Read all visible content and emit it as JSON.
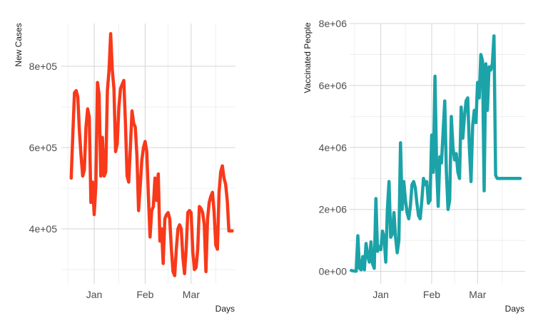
{
  "chart_data": [
    {
      "type": "line",
      "xlabel": "Days",
      "ylabel": "New Cases",
      "xlim": [
        "2020-12-12",
        "2021-03-28"
      ],
      "ylim": [
        265000,
        905000
      ],
      "x_ticks": [
        {
          "date": "2021-01-01",
          "label": "Jan"
        },
        {
          "date": "2021-02-01",
          "label": "Feb"
        },
        {
          "date": "2021-03-01",
          "label": "Mar"
        }
      ],
      "x_minor_ticks": [
        "2020-12-16",
        "2021-01-16",
        "2021-02-15",
        "2021-03-16"
      ],
      "y_ticks": [
        {
          "value": 400000,
          "label": "4e+05"
        },
        {
          "value": 600000,
          "label": "6e+05"
        },
        {
          "value": 800000,
          "label": "8e+05"
        }
      ],
      "y_minor_ticks": [
        300000,
        500000,
        700000
      ],
      "grid": true,
      "series": [
        {
          "color": "#F8391A",
          "x": [
            "2020-12-18",
            "2020-12-19",
            "2020-12-20",
            "2020-12-21",
            "2020-12-22",
            "2020-12-23",
            "2020-12-24",
            "2020-12-25",
            "2020-12-26",
            "2020-12-27",
            "2020-12-28",
            "2020-12-29",
            "2020-12-30",
            "2020-12-31",
            "2021-01-01",
            "2021-01-02",
            "2021-01-03",
            "2021-01-04",
            "2021-01-05",
            "2021-01-06",
            "2021-01-07",
            "2021-01-08",
            "2021-01-09",
            "2021-01-10",
            "2021-01-11",
            "2021-01-12",
            "2021-01-13",
            "2021-01-14",
            "2021-01-15",
            "2021-01-16",
            "2021-01-17",
            "2021-01-18",
            "2021-01-19",
            "2021-01-20",
            "2021-01-21",
            "2021-01-22",
            "2021-01-23",
            "2021-01-24",
            "2021-01-25",
            "2021-01-26",
            "2021-01-27",
            "2021-01-28",
            "2021-01-29",
            "2021-01-30",
            "2021-01-31",
            "2021-02-01",
            "2021-02-02",
            "2021-02-03",
            "2021-02-04",
            "2021-02-05",
            "2021-02-06",
            "2021-02-07",
            "2021-02-08",
            "2021-02-09",
            "2021-02-10",
            "2021-02-11",
            "2021-02-12",
            "2021-02-13",
            "2021-02-14",
            "2021-02-15",
            "2021-02-16",
            "2021-02-17",
            "2021-02-18",
            "2021-02-19",
            "2021-02-20",
            "2021-02-21",
            "2021-02-22",
            "2021-02-23",
            "2021-02-24",
            "2021-02-25",
            "2021-02-26",
            "2021-02-27",
            "2021-02-28",
            "2021-03-01",
            "2021-03-02",
            "2021-03-03",
            "2021-03-04",
            "2021-03-05",
            "2021-03-06",
            "2021-03-07",
            "2021-03-08",
            "2021-03-09",
            "2021-03-10",
            "2021-03-11",
            "2021-03-12",
            "2021-03-13",
            "2021-03-14",
            "2021-03-15",
            "2021-03-16",
            "2021-03-17",
            "2021-03-18",
            "2021-03-19",
            "2021-03-20",
            "2021-03-21",
            "2021-03-22",
            "2021-03-23",
            "2021-03-24",
            "2021-03-25",
            "2021-03-26"
          ],
          "y": [
            525000,
            635000,
            735000,
            740000,
            725000,
            640000,
            580000,
            530000,
            545000,
            650000,
            695000,
            675000,
            465000,
            515000,
            435000,
            505000,
            760000,
            730000,
            530000,
            625000,
            530000,
            540000,
            740000,
            790000,
            880000,
            790000,
            745000,
            590000,
            610000,
            700000,
            745000,
            755000,
            765000,
            660000,
            530000,
            515000,
            600000,
            690000,
            660000,
            650000,
            580000,
            445000,
            505000,
            570000,
            600000,
            615000,
            590000,
            480000,
            380000,
            445000,
            455000,
            525000,
            470000,
            535000,
            370000,
            400000,
            315000,
            425000,
            435000,
            440000,
            425000,
            350000,
            295000,
            285000,
            350000,
            400000,
            410000,
            400000,
            330000,
            290000,
            350000,
            440000,
            445000,
            440000,
            345000,
            300000,
            305000,
            350000,
            455000,
            450000,
            440000,
            410000,
            295000,
            425000,
            465000,
            480000,
            490000,
            440000,
            360000,
            350000,
            490000,
            540000,
            555000,
            525000,
            510000,
            470000,
            395000,
            395000,
            395000
          ]
        }
      ]
    },
    {
      "type": "line",
      "xlabel": "Days",
      "ylabel": "Vaccinated People",
      "xlim": [
        "2020-12-13",
        "2021-03-30"
      ],
      "ylim": [
        -400000,
        8000000
      ],
      "x_ticks": [
        {
          "date": "2021-01-01",
          "label": "Jan"
        },
        {
          "date": "2021-02-01",
          "label": "Feb"
        },
        {
          "date": "2021-03-01",
          "label": "Mar"
        }
      ],
      "x_minor_ticks": [
        "2020-12-16",
        "2021-01-16",
        "2021-02-15",
        "2021-03-16"
      ],
      "y_ticks": [
        {
          "value": 0,
          "label": "0e+00"
        },
        {
          "value": 2000000,
          "label": "2e+06"
        },
        {
          "value": 4000000,
          "label": "4e+06"
        },
        {
          "value": 6000000,
          "label": "6e+06"
        },
        {
          "value": 8000000,
          "label": "8e+06"
        }
      ],
      "y_minor_ticks": [
        1000000,
        3000000,
        5000000,
        7000000
      ],
      "grid": true,
      "series": [
        {
          "color": "#1BA3A8",
          "x": [
            "2020-12-14",
            "2020-12-15",
            "2020-12-16",
            "2020-12-17",
            "2020-12-18",
            "2020-12-19",
            "2020-12-20",
            "2020-12-21",
            "2020-12-22",
            "2020-12-23",
            "2020-12-24",
            "2020-12-25",
            "2020-12-26",
            "2020-12-27",
            "2020-12-28",
            "2020-12-29",
            "2020-12-30",
            "2020-12-31",
            "2021-01-01",
            "2021-01-02",
            "2021-01-03",
            "2021-01-04",
            "2021-01-05",
            "2021-01-06",
            "2021-01-07",
            "2021-01-08",
            "2021-01-09",
            "2021-01-10",
            "2021-01-11",
            "2021-01-12",
            "2021-01-13",
            "2021-01-14",
            "2021-01-15",
            "2021-01-16",
            "2021-01-17",
            "2021-01-18",
            "2021-01-19",
            "2021-01-20",
            "2021-01-21",
            "2021-01-22",
            "2021-01-23",
            "2021-01-24",
            "2021-01-25",
            "2021-01-26",
            "2021-01-27",
            "2021-01-28",
            "2021-01-29",
            "2021-01-30",
            "2021-01-31",
            "2021-02-01",
            "2021-02-02",
            "2021-02-03",
            "2021-02-04",
            "2021-02-05",
            "2021-02-06",
            "2021-02-07",
            "2021-02-08",
            "2021-02-09",
            "2021-02-10",
            "2021-02-11",
            "2021-02-12",
            "2021-02-13",
            "2021-02-14",
            "2021-02-15",
            "2021-02-16",
            "2021-02-17",
            "2021-02-18",
            "2021-02-19",
            "2021-02-20",
            "2021-02-21",
            "2021-02-22",
            "2021-02-23",
            "2021-02-24",
            "2021-02-25",
            "2021-02-26",
            "2021-02-27",
            "2021-02-28",
            "2021-03-01",
            "2021-03-02",
            "2021-03-03",
            "2021-03-04",
            "2021-03-05",
            "2021-03-06",
            "2021-03-07",
            "2021-03-08",
            "2021-03-09",
            "2021-03-10",
            "2021-03-11",
            "2021-03-12",
            "2021-03-13",
            "2021-03-14",
            "2021-03-15",
            "2021-03-16",
            "2021-03-17",
            "2021-03-18",
            "2021-03-19",
            "2021-03-20",
            "2021-03-21",
            "2021-03-22",
            "2021-03-23",
            "2021-03-24",
            "2021-03-25",
            "2021-03-26",
            "2021-03-27"
          ],
          "y": [
            30000,
            20000,
            10000,
            10000,
            1150000,
            100000,
            50000,
            480000,
            50000,
            900000,
            500000,
            300000,
            950000,
            250000,
            100000,
            2350000,
            650000,
            800000,
            700000,
            1300000,
            1100000,
            300000,
            2000000,
            2900000,
            1100000,
            1200000,
            1900000,
            1100000,
            600000,
            1000000,
            4150000,
            2000000,
            2900000,
            2300000,
            1900000,
            1700000,
            2100000,
            2800000,
            2900000,
            2700000,
            2200000,
            1800000,
            1700000,
            2300000,
            3000000,
            2800000,
            2900000,
            2200000,
            2300000,
            4400000,
            3200000,
            6300000,
            3400000,
            2100000,
            3700000,
            3500000,
            4500000,
            5500000,
            3200000,
            2000000,
            2300000,
            5000000,
            4000000,
            3600000,
            3800000,
            3200000,
            3000000,
            5300000,
            4300000,
            5000000,
            5500000,
            5600000,
            4000000,
            2900000,
            4700000,
            5200000,
            4800000,
            6100000,
            5600000,
            7000000,
            6800000,
            2600000,
            6700000,
            5200000,
            6600000,
            6500000,
            6700000,
            7600000,
            3100000,
            3000000,
            3000000,
            3000000,
            3000000,
            3000000,
            3000000,
            3000000,
            3000000,
            3000000,
            3000000,
            3000000,
            3000000,
            3000000,
            3000000,
            3000000
          ]
        }
      ]
    }
  ]
}
